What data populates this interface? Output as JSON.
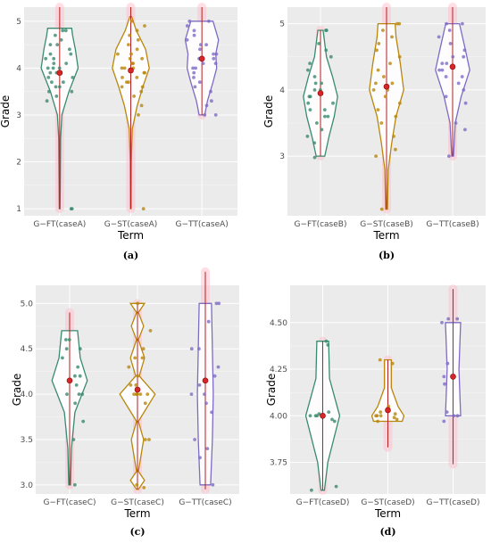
{
  "colors": {
    "FT": "#3a8a6e",
    "ST": "#b8860b",
    "TT": "#7e6bc4",
    "median_line": "#b22222",
    "mean_point": "#d62728",
    "halo": "#ffc0cb"
  },
  "chart_data": [
    {
      "type": "violin",
      "caption": "(a)",
      "xlabel": "Term",
      "ylabel": "Grade",
      "categories": [
        "G−FT(caseA)",
        "G−ST(caseA)",
        "G−TT(caseA)"
      ],
      "ylim": [
        0.85,
        5.3
      ],
      "yticks": [
        1,
        2,
        3,
        4,
        5
      ],
      "ytick_labels": [
        "1",
        "2",
        "3",
        "4",
        "5"
      ],
      "grid": true,
      "violins": [
        {
          "min": 1.0,
          "max": 4.85,
          "line": [
            1.0,
            5.3
          ],
          "mean": 3.9,
          "profile": [
            [
              1.0,
              0.02
            ],
            [
              1.5,
              0.03
            ],
            [
              2.5,
              0.05
            ],
            [
              3.0,
              0.12
            ],
            [
              3.5,
              0.5
            ],
            [
              4.0,
              1.0
            ],
            [
              4.4,
              0.85
            ],
            [
              4.7,
              0.7
            ],
            [
              4.85,
              0.65
            ]
          ],
          "points": [
            1.0,
            1.0,
            3.3,
            3.4,
            3.5,
            3.5,
            3.6,
            3.6,
            3.7,
            3.7,
            3.8,
            3.8,
            3.9,
            3.9,
            4.0,
            4.0,
            4.0,
            4.1,
            4.1,
            4.2,
            4.2,
            4.3,
            4.3,
            4.4,
            4.5,
            4.5,
            4.6,
            4.7,
            4.8,
            4.8
          ]
        },
        {
          "min": 1.0,
          "max": 5.1,
          "line": [
            1.0,
            5.3
          ],
          "mean": 3.95,
          "profile": [
            [
              1.0,
              0.02
            ],
            [
              2.0,
              0.03
            ],
            [
              2.7,
              0.08
            ],
            [
              3.2,
              0.35
            ],
            [
              3.6,
              0.65
            ],
            [
              4.0,
              1.0
            ],
            [
              4.4,
              0.8
            ],
            [
              4.8,
              0.3
            ],
            [
              5.1,
              0.05
            ]
          ],
          "points": [
            1.0,
            3.0,
            3.2,
            3.4,
            3.5,
            3.6,
            3.6,
            3.7,
            3.7,
            3.8,
            3.8,
            3.9,
            3.9,
            4.0,
            4.0,
            4.0,
            4.1,
            4.1,
            4.2,
            4.2,
            4.3,
            4.3,
            4.4,
            4.5,
            4.6,
            4.7,
            4.8,
            4.9,
            5.0
          ]
        },
        {
          "min": 3.0,
          "max": 5.0,
          "line": [
            3.0,
            5.3
          ],
          "mean": 4.2,
          "profile": [
            [
              3.0,
              0.15
            ],
            [
              3.3,
              0.3
            ],
            [
              3.7,
              0.6
            ],
            [
              4.0,
              0.8
            ],
            [
              4.3,
              0.75
            ],
            [
              4.6,
              0.9
            ],
            [
              5.0,
              0.6
            ]
          ],
          "points": [
            3.0,
            3.0,
            3.2,
            3.3,
            3.5,
            3.6,
            3.7,
            3.8,
            3.9,
            4.0,
            4.0,
            4.1,
            4.1,
            4.2,
            4.2,
            4.3,
            4.3,
            4.4,
            4.5,
            4.5,
            4.6,
            4.7,
            4.8,
            4.9,
            5.0,
            5.0
          ]
        }
      ]
    },
    {
      "type": "violin",
      "caption": "(b)",
      "xlabel": "Term",
      "ylabel": "Grade",
      "categories": [
        "G−FT(caseB)",
        "G−ST(caseB)",
        "G−TT(caseB)"
      ],
      "ylim": [
        2.1,
        5.25
      ],
      "yticks": [
        3,
        4,
        5
      ],
      "ytick_labels": [
        "3",
        "4",
        "5"
      ],
      "grid": true,
      "violins": [
        {
          "min": 3.0,
          "max": 4.9,
          "line": [
            3.0,
            4.9
          ],
          "mean": 3.95,
          "profile": [
            [
              3.0,
              0.25
            ],
            [
              3.3,
              0.5
            ],
            [
              3.6,
              0.8
            ],
            [
              3.9,
              1.0
            ],
            [
              4.2,
              0.7
            ],
            [
              4.5,
              0.35
            ],
            [
              4.9,
              0.15
            ]
          ],
          "points": [
            2.98,
            3.2,
            3.3,
            3.4,
            3.5,
            3.6,
            3.6,
            3.7,
            3.7,
            3.8,
            3.8,
            3.9,
            3.9,
            4.0,
            4.0,
            4.1,
            4.1,
            4.2,
            4.3,
            4.4,
            4.5,
            4.6,
            4.7,
            4.9,
            4.9
          ]
        },
        {
          "min": 2.2,
          "max": 5.0,
          "line": [
            2.2,
            5.25
          ],
          "mean": 4.05,
          "profile": [
            [
              2.2,
              0.05
            ],
            [
              2.8,
              0.1
            ],
            [
              3.2,
              0.3
            ],
            [
              3.6,
              0.55
            ],
            [
              4.0,
              1.0
            ],
            [
              4.4,
              0.8
            ],
            [
              4.8,
              0.55
            ],
            [
              5.0,
              0.5
            ]
          ],
          "points": [
            2.2,
            3.0,
            3.1,
            3.3,
            3.5,
            3.6,
            3.7,
            3.8,
            3.9,
            4.0,
            4.0,
            4.1,
            4.1,
            4.2,
            4.3,
            4.4,
            4.5,
            4.6,
            4.7,
            4.8,
            4.9,
            5.0,
            5.0
          ]
        },
        {
          "min": 3.0,
          "max": 5.0,
          "line": [
            3.0,
            5.25
          ],
          "mean": 4.35,
          "profile": [
            [
              3.0,
              0.05
            ],
            [
              3.5,
              0.15
            ],
            [
              3.9,
              0.5
            ],
            [
              4.3,
              1.0
            ],
            [
              4.6,
              0.75
            ],
            [
              5.0,
              0.4
            ]
          ],
          "points": [
            3.0,
            3.4,
            3.5,
            3.8,
            3.9,
            4.0,
            4.1,
            4.2,
            4.2,
            4.3,
            4.3,
            4.4,
            4.4,
            4.5,
            4.5,
            4.6,
            4.7,
            4.8,
            4.9,
            5.0,
            5.0
          ]
        }
      ]
    },
    {
      "type": "violin",
      "caption": "(c)",
      "xlabel": "Term",
      "ylabel": "Grade",
      "categories": [
        "G−FT(caseC)",
        "G−ST(caseC)",
        "G−TT(caseC)"
      ],
      "ylim": [
        2.9,
        5.2
      ],
      "yticks": [
        3.0,
        3.5,
        4.0,
        4.5,
        5.0
      ],
      "ytick_labels": [
        "3.0",
        "3.5",
        "4.0",
        "4.5",
        "5.0"
      ],
      "grid": true,
      "violins": [
        {
          "min": 3.0,
          "max": 4.7,
          "line": [
            3.0,
            4.9
          ],
          "mean": 4.15,
          "profile": [
            [
              3.0,
              0.05
            ],
            [
              3.4,
              0.1
            ],
            [
              3.8,
              0.3
            ],
            [
              4.15,
              1.0
            ],
            [
              4.4,
              0.6
            ],
            [
              4.7,
              0.45
            ]
          ],
          "points": [
            3.0,
            3.5,
            3.7,
            3.9,
            4.0,
            4.0,
            4.0,
            4.1,
            4.2,
            4.2,
            4.3,
            4.4,
            4.5,
            4.5,
            4.6,
            4.6
          ]
        },
        {
          "min": 2.95,
          "max": 5.0,
          "line": [
            2.95,
            5.0
          ],
          "mean": 4.05,
          "profile": [
            [
              2.95,
              0.05
            ],
            [
              3.05,
              0.4
            ],
            [
              3.15,
              0.05
            ],
            [
              3.5,
              0.35
            ],
            [
              3.7,
              0.05
            ],
            [
              4.0,
              1.0
            ],
            [
              4.2,
              0.1
            ],
            [
              4.4,
              0.4
            ],
            [
              4.6,
              0.05
            ],
            [
              4.75,
              0.35
            ],
            [
              4.9,
              0.05
            ],
            [
              5.0,
              0.4
            ]
          ],
          "points": [
            2.97,
            3.0,
            3.5,
            3.5,
            3.9,
            4.0,
            4.0,
            4.0,
            4.0,
            4.0,
            4.0,
            4.1,
            4.1,
            4.2,
            4.3,
            4.4,
            4.4,
            4.5,
            4.7,
            5.0
          ]
        },
        {
          "min": 3.0,
          "max": 5.0,
          "line": [
            2.95,
            5.35
          ],
          "mean": 4.15,
          "profile": [
            [
              3.0,
              0.3
            ],
            [
              3.5,
              0.4
            ],
            [
              4.0,
              0.45
            ],
            [
              4.5,
              0.4
            ],
            [
              5.0,
              0.35
            ]
          ],
          "points": [
            3.0,
            3.3,
            3.4,
            3.5,
            3.8,
            3.9,
            4.0,
            4.0,
            4.1,
            4.2,
            4.3,
            4.5,
            4.5,
            4.8,
            5.0,
            5.0
          ]
        }
      ]
    },
    {
      "type": "violin",
      "caption": "(d)",
      "xlabel": "Term",
      "ylabel": "Grade",
      "categories": [
        "G−FT(caseD)",
        "G−ST(caseD)",
        "G−TT(caseD)"
      ],
      "ylim": [
        3.58,
        4.7
      ],
      "yticks": [
        3.75,
        4.0,
        4.25,
        4.5
      ],
      "ytick_labels": [
        "3.75",
        "4.00",
        "4.25",
        "4.50"
      ],
      "grid": true,
      "violins": [
        {
          "min": 3.6,
          "max": 4.4,
          "line": [
            3.6,
            4.4
          ],
          "mean": 4.0,
          "profile": [
            [
              3.6,
              0.1
            ],
            [
              3.75,
              0.3
            ],
            [
              4.0,
              1.0
            ],
            [
              4.2,
              0.4
            ],
            [
              4.4,
              0.35
            ]
          ],
          "points": [
            3.6,
            3.62,
            3.97,
            3.98,
            4.0,
            4.0,
            4.0,
            4.01,
            4.02,
            4.38,
            4.4
          ]
        },
        {
          "min": 3.97,
          "max": 4.3,
          "line": [
            3.83,
            4.3
          ],
          "mean": 4.03,
          "profile": [
            [
              3.97,
              0.85
            ],
            [
              4.0,
              0.95
            ],
            [
              4.05,
              0.6
            ],
            [
              4.15,
              0.2
            ],
            [
              4.3,
              0.2
            ]
          ],
          "points": [
            3.97,
            3.98,
            3.99,
            4.0,
            4.0,
            4.0,
            4.01,
            4.02,
            4.05,
            4.28,
            4.3
          ]
        },
        {
          "min": 4.0,
          "max": 4.5,
          "line": [
            3.74,
            4.68
          ],
          "mean": 4.21,
          "profile": [
            [
              4.0,
              0.45
            ],
            [
              4.25,
              0.35
            ],
            [
              4.5,
              0.45
            ]
          ],
          "points": [
            3.97,
            4.0,
            4.0,
            4.02,
            4.17,
            4.21,
            4.28,
            4.5,
            4.52,
            4.52
          ]
        }
      ]
    }
  ]
}
